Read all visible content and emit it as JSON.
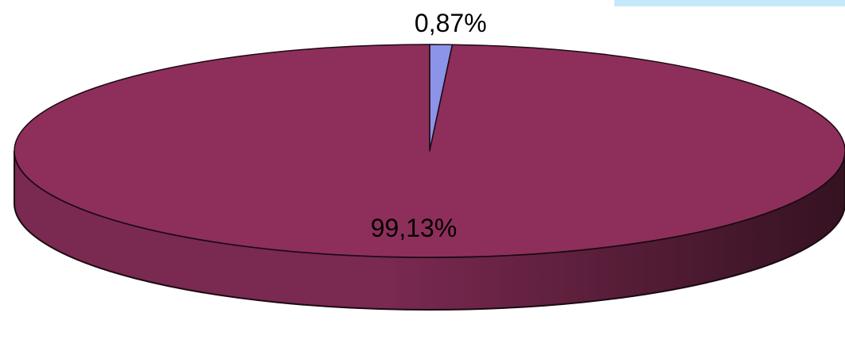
{
  "chart_data": {
    "type": "pie",
    "style": "3d",
    "title": "",
    "legend": "none",
    "slices": [
      {
        "label": "0,87%",
        "value": 0.87,
        "color": "#8b94e8"
      },
      {
        "label": "99,13%",
        "value": 99.13,
        "color": "#8e2f5b"
      }
    ]
  },
  "colors": {
    "corner_strip": "#c5e9fb",
    "side_light": "#7a2950",
    "side_dark": "#351221",
    "outline": "#1a0a12"
  }
}
